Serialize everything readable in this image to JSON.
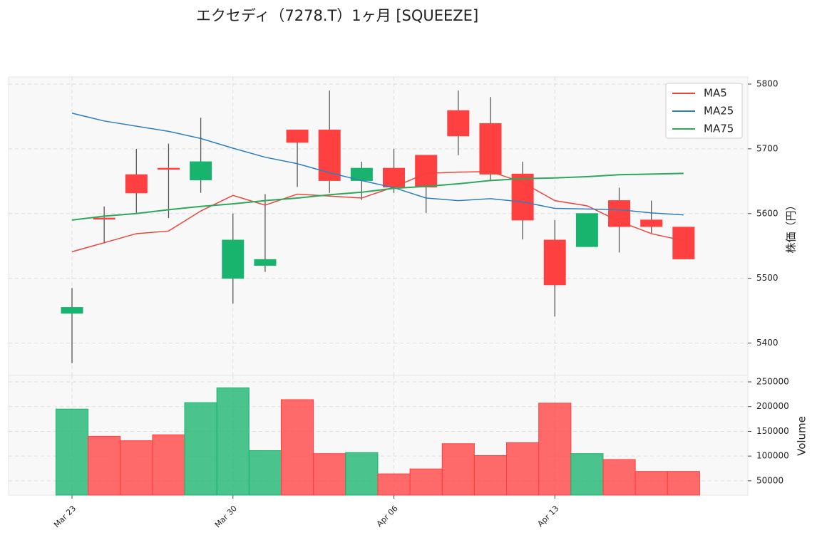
{
  "chart_data": [
    {
      "type": "candlestick",
      "title": "エクセディ（7278.T）1ヶ月 [SQUEEZE]",
      "categories": [
        "Mar 23",
        null,
        null,
        null,
        null,
        "Mar 30",
        null,
        null,
        null,
        null,
        "Apr 06",
        null,
        null,
        null,
        null,
        "Apr 13",
        null,
        null,
        null,
        null
      ],
      "open": [
        5446,
        5593,
        5660,
        5670,
        5652,
        5500,
        5520,
        5729,
        5729,
        5651,
        5670,
        5690,
        5759,
        5739,
        5661,
        5559,
        5549,
        5620,
        5590,
        5579
      ],
      "high": [
        5485,
        5611,
        5700,
        5708,
        5748,
        5600,
        5630,
        5729,
        5790,
        5680,
        5700,
        5690,
        5790,
        5780,
        5680,
        5590,
        5600,
        5640,
        5620,
        5579
      ],
      "low": [
        5369,
        5554,
        5601,
        5593,
        5632,
        5461,
        5510,
        5641,
        5632,
        5621,
        5632,
        5601,
        5690,
        5651,
        5560,
        5441,
        5549,
        5540,
        5570,
        5530
      ],
      "close": [
        5455,
        5592,
        5632,
        5669,
        5680,
        5559,
        5529,
        5710,
        5651,
        5670,
        5641,
        5641,
        5720,
        5661,
        5590,
        5490,
        5600,
        5580,
        5580,
        5530
      ],
      "up_color": "#18b46e",
      "down_color": "#ff4040",
      "lines": [
        {
          "name": "MA5",
          "color": "#e8463a",
          "values": [
            5541,
            5555,
            5569,
            5573,
            5604,
            5628,
            5613,
            5630,
            5627,
            5624,
            5641,
            5662,
            5664,
            5665,
            5648,
            5620,
            5612,
            5588,
            5569,
            5558
          ]
        },
        {
          "name": "MA25",
          "color": "#2d7fbe",
          "values": [
            5755,
            5743,
            5735,
            5727,
            5716,
            5701,
            5687,
            5677,
            5663,
            5651,
            5640,
            5624,
            5620,
            5623,
            5618,
            5608,
            5607,
            5606,
            5601,
            5598
          ]
        },
        {
          "name": "MA75",
          "color": "#2ea85a",
          "values": [
            5590,
            5596,
            5600,
            5606,
            5611,
            5615,
            5620,
            5624,
            5629,
            5633,
            5639,
            5642,
            5646,
            5651,
            5654,
            5655,
            5657,
            5660,
            5661,
            5662
          ]
        }
      ],
      "ylabel": "株価（円）",
      "ylim": [
        5350,
        5811
      ],
      "yticks": [
        5400,
        5500,
        5600,
        5700,
        5800
      ],
      "grid": true,
      "legend": "upper right"
    },
    {
      "type": "bar",
      "ylabel": "Volume",
      "values": [
        195000,
        140000,
        131000,
        143000,
        208000,
        238000,
        111000,
        214000,
        105000,
        107000,
        64000,
        74000,
        125000,
        101000,
        127000,
        207000,
        105000,
        93000,
        69000,
        69000
      ],
      "ylim": [
        21000,
        263000
      ],
      "yticks": [
        50000,
        100000,
        150000,
        200000,
        250000
      ],
      "grid": true
    }
  ]
}
